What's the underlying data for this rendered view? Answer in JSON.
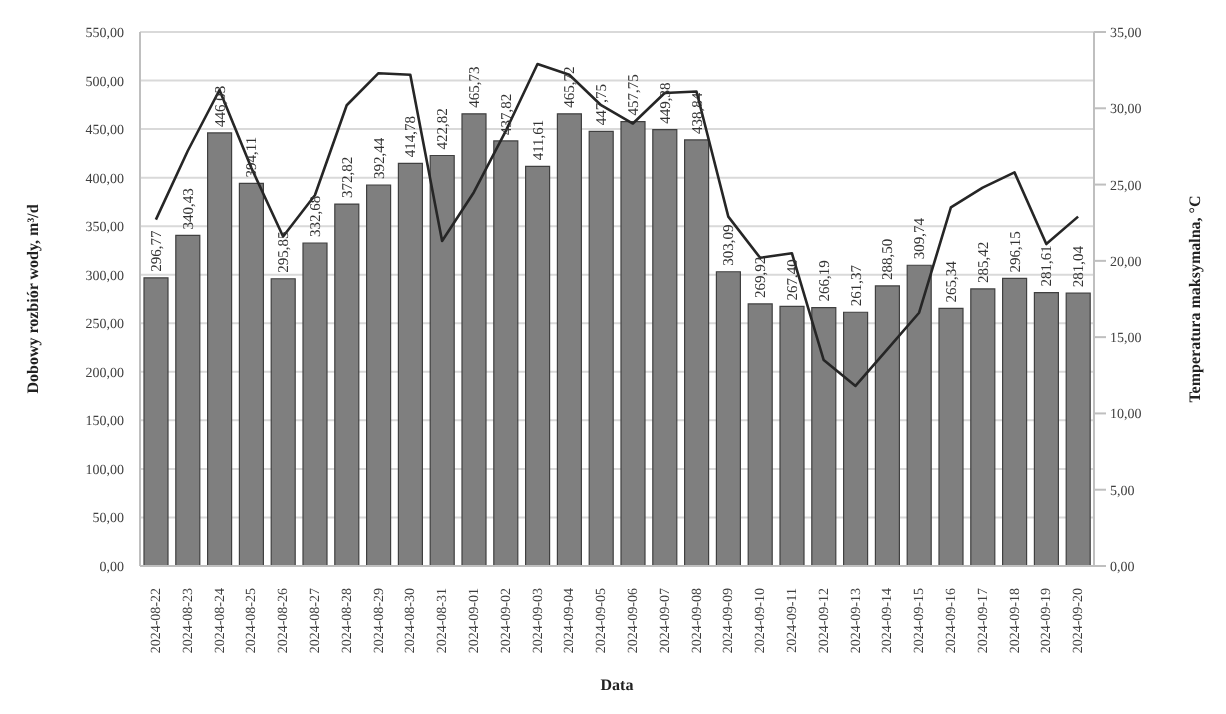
{
  "chart_data": {
    "type": "bar",
    "xlabel": "Data",
    "ylabel": "Dobowy rozbiór wody, m³/d",
    "y2label": "Temperatura maksymalna, °C",
    "categories": [
      "2024-08-22",
      "2024-08-23",
      "2024-08-24",
      "2024-08-25",
      "2024-08-26",
      "2024-08-27",
      "2024-08-28",
      "2024-08-29",
      "2024-08-30",
      "2024-08-31",
      "2024-09-01",
      "2024-09-02",
      "2024-09-03",
      "2024-09-04",
      "2024-09-05",
      "2024-09-06",
      "2024-09-07",
      "2024-09-08",
      "2024-09-09",
      "2024-09-10",
      "2024-09-11",
      "2024-09-12",
      "2024-09-13",
      "2024-09-14",
      "2024-09-15",
      "2024-09-16",
      "2024-09-17",
      "2024-09-18",
      "2024-09-19",
      "2024-09-20"
    ],
    "series": [
      {
        "color": "#7f7f7f",
        "values": [
          296.77,
          340.43,
          446.03,
          394.11,
          295.85,
          332.68,
          372.82,
          392.44,
          414.78,
          422.82,
          465.73,
          437.82,
          411.61,
          465.72,
          447.75,
          457.75,
          449.38,
          438.84,
          303.09,
          269.92,
          267.4,
          266.19,
          261.37,
          288.5,
          309.74,
          265.34,
          285.42,
          296.15,
          281.61,
          281.04
        ],
        "value_labels": [
          "296,77",
          "340,43",
          "446,03",
          "394,11",
          "295,85",
          "332,68",
          "372,82",
          "392,44",
          "414,78",
          "422,82",
          "465,73",
          "437,82",
          "411,61",
          "465,72",
          "447,75",
          "457,75",
          "449,38",
          "438,84",
          "303,09",
          "269,92",
          "267,40",
          "266,19",
          "261,37",
          "288,50",
          "309,74",
          "265,34",
          "285,42",
          "296,15",
          "281,61",
          "281,04"
        ]
      },
      {
        "type": "line",
        "axis": "y2",
        "color": "#262626",
        "marker": "none",
        "line_style": "solid",
        "values": [
          22.7,
          27.2,
          31.2,
          26.1,
          21.6,
          24.3,
          30.2,
          32.3,
          32.2,
          21.3,
          24.5,
          28.5,
          32.9,
          32.2,
          30.2,
          29.0,
          31.0,
          31.1,
          22.9,
          20.2,
          20.5,
          13.5,
          11.8,
          14.2,
          16.6,
          23.5,
          24.8,
          25.8,
          21.1,
          22.9
        ]
      }
    ],
    "ylim": [
      0,
      550
    ],
    "yticks": [
      {
        "value": 0,
        "label": "0,00"
      },
      {
        "value": 50,
        "label": "50,00"
      },
      {
        "value": 100,
        "label": "100,00"
      },
      {
        "value": 150,
        "label": "150,00"
      },
      {
        "value": 200,
        "label": "200,00"
      },
      {
        "value": 250,
        "label": "250,00"
      },
      {
        "value": 300,
        "label": "300,00"
      },
      {
        "value": 350,
        "label": "350,00"
      },
      {
        "value": 400,
        "label": "400,00"
      },
      {
        "value": 450,
        "label": "450,00"
      },
      {
        "value": 500,
        "label": "500,00"
      },
      {
        "value": 550,
        "label": "550,00"
      }
    ],
    "y2lim": [
      0,
      35
    ],
    "y2ticks": [
      {
        "value": 0,
        "label": "0,00"
      },
      {
        "value": 5,
        "label": "5,00"
      },
      {
        "value": 10,
        "label": "10,00"
      },
      {
        "value": 15,
        "label": "15,00"
      },
      {
        "value": 20,
        "label": "20,00"
      },
      {
        "value": 25,
        "label": "25,00"
      },
      {
        "value": 30,
        "label": "30,00"
      },
      {
        "value": 35,
        "label": "35,00"
      }
    ],
    "grid": "y",
    "legend": false
  }
}
